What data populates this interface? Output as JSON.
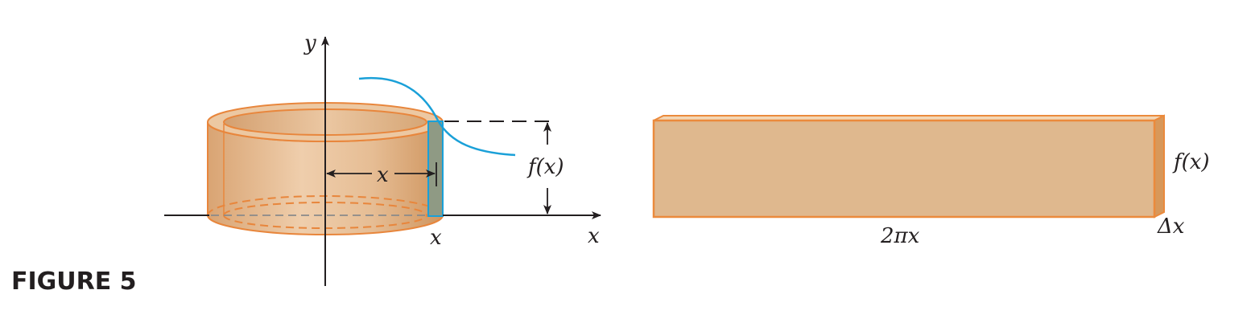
{
  "caption": "FIGURE 5",
  "left_diagram": {
    "y_axis_label": "y",
    "x_axis_label": "x",
    "radius_label": "x",
    "x_tick_label": "x",
    "height_label": "f(x)"
  },
  "right_diagram": {
    "height_label": "f(x)",
    "length_label": "2πx",
    "thickness_label": "Δx"
  },
  "colors": {
    "shell_fill": "#e0b88e",
    "shell_stroke": "#e8863c",
    "curve": "#1aa0d8",
    "slab_fill": "#dfb88e",
    "slab_stroke": "#eb8a3c",
    "axis": "#231f20"
  }
}
